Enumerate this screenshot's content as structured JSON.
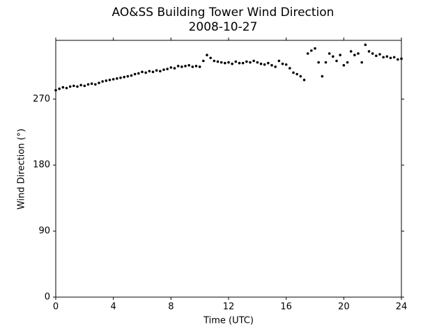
{
  "chart_data": {
    "type": "scatter",
    "title": "AO&SS Building Tower Wind Direction",
    "subtitle": "2008-10-27",
    "x_label": "Time (UTC)",
    "y_label": "Wind Direction (°)",
    "color": "#000000",
    "xlim": [
      0,
      24
    ],
    "xticks": [
      0,
      4,
      8,
      12,
      16,
      20,
      24
    ],
    "ylim": [
      0,
      350
    ],
    "yticks": [
      0,
      90,
      180,
      270
    ],
    "x": [
      0,
      0.25,
      0.5,
      0.75,
      1,
      1.25,
      1.5,
      1.75,
      2,
      2.25,
      2.5,
      2.75,
      3,
      3.25,
      3.5,
      3.75,
      4,
      4.25,
      4.5,
      4.75,
      5,
      5.25,
      5.5,
      5.75,
      6,
      6.25,
      6.5,
      6.75,
      7,
      7.25,
      7.5,
      7.75,
      8,
      8.25,
      8.5,
      8.75,
      9,
      9.25,
      9.5,
      9.75,
      10,
      10.25,
      10.5,
      10.75,
      11,
      11.25,
      11.5,
      11.75,
      12,
      12.25,
      12.5,
      12.75,
      13,
      13.25,
      13.5,
      13.75,
      14,
      14.25,
      14.5,
      14.75,
      15,
      15.25,
      15.5,
      15.75,
      16,
      16.25,
      16.5,
      16.75,
      17,
      17.25,
      17.5,
      17.75,
      18,
      18.25,
      18.5,
      18.75,
      19,
      19.25,
      19.5,
      19.75,
      20,
      20.25,
      20.5,
      20.75,
      21,
      21.25,
      21.5,
      21.75,
      22,
      22.25,
      22.5,
      22.75,
      23,
      23.25,
      23.5,
      23.75,
      24
    ],
    "values": [
      282,
      284,
      286,
      285,
      287,
      288,
      287,
      289,
      288,
      290,
      291,
      290,
      292,
      294,
      295,
      296,
      297,
      298,
      299,
      300,
      301,
      302,
      304,
      305,
      307,
      306,
      308,
      307,
      309,
      308,
      310,
      311,
      313,
      312,
      315,
      314,
      315,
      316,
      314,
      315,
      314,
      322,
      330,
      326,
      322,
      321,
      320,
      319,
      320,
      318,
      321,
      319,
      319,
      321,
      320,
      322,
      320,
      318,
      317,
      319,
      316,
      314,
      322,
      318,
      317,
      312,
      306,
      304,
      301,
      296,
      332,
      336,
      339,
      320,
      301,
      320,
      332,
      328,
      322,
      330,
      316,
      320,
      335,
      330,
      332,
      320,
      344,
      335,
      332,
      329,
      331,
      327,
      328,
      326,
      327,
      324,
      325
    ]
  }
}
